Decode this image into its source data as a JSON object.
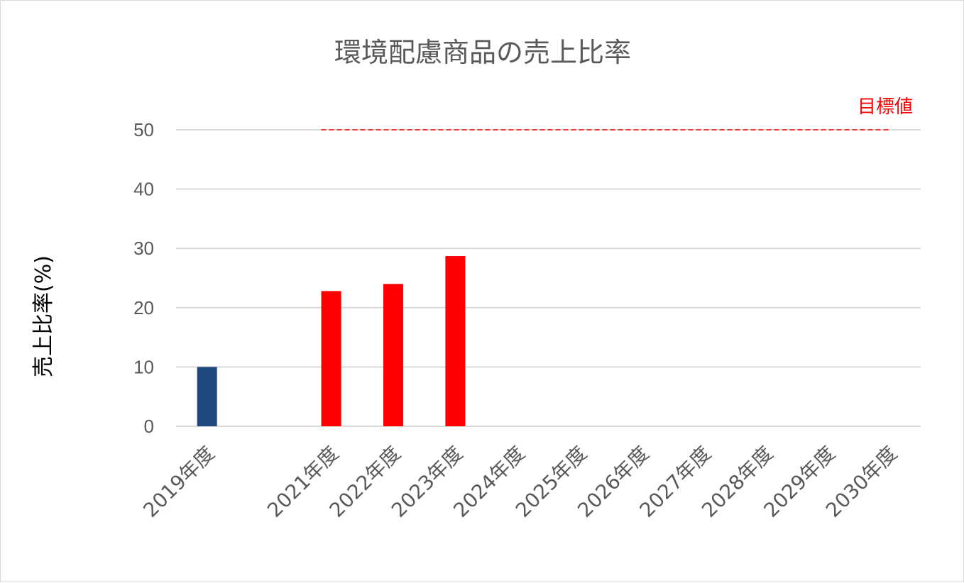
{
  "chart_data": {
    "type": "bar",
    "title": "環境配慮商品の売上比率",
    "xlabel": "",
    "ylabel": "売上比率(%)",
    "ylim": [
      0,
      50
    ],
    "yticks": [
      0,
      10,
      20,
      30,
      40,
      50
    ],
    "grid": true,
    "categories": [
      "2019年度",
      "",
      "2021年度",
      "2022年度",
      "2023年度",
      "2024年度",
      "2025年度",
      "2026年度",
      "2027年度",
      "2028年度",
      "2029年度",
      "2030年度"
    ],
    "values": [
      10,
      null,
      22.8,
      24,
      28.7,
      null,
      null,
      null,
      null,
      null,
      null,
      null
    ],
    "bar_colors": [
      "#1f497d",
      null,
      "#ff0000",
      "#ff0000",
      "#ff0000",
      null,
      null,
      null,
      null,
      null,
      null,
      null
    ],
    "target": {
      "label": "目標値",
      "value": 50,
      "from_category": "2021年度",
      "to_category": "2030年度",
      "color": "#ff0000",
      "style": "dashed"
    }
  }
}
